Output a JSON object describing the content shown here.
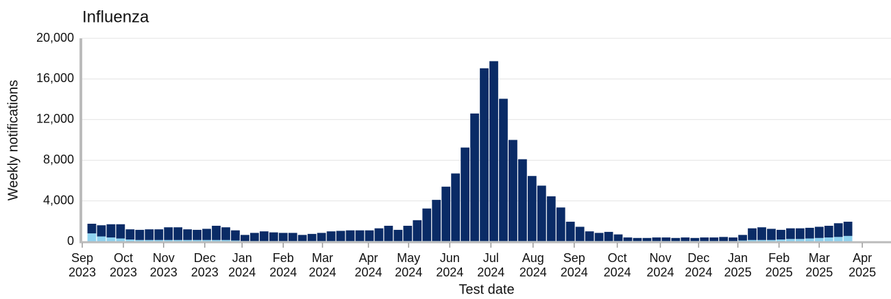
{
  "chart_data": {
    "type": "stacked-bar",
    "title": "Influenza",
    "ylabel": "Weekly notifications",
    "xlabel": "Test date",
    "categories": [
      null,
      null,
      null,
      null,
      null,
      null,
      null,
      null,
      null,
      null,
      null,
      null,
      null,
      null,
      null,
      null,
      null,
      null,
      null,
      null,
      null,
      null,
      null,
      null,
      null,
      null,
      null,
      null,
      null,
      null,
      null,
      null,
      null,
      null,
      null,
      null,
      null,
      null,
      null,
      null,
      null,
      null,
      null,
      null,
      null,
      null,
      null,
      null,
      null,
      null,
      null,
      null,
      null,
      null,
      null,
      null,
      null,
      null,
      null,
      null,
      null,
      null,
      null,
      null,
      null,
      null,
      null,
      null,
      null,
      null,
      null,
      null,
      null,
      null,
      null,
      null,
      null,
      null,
      null,
      null
    ],
    "series": [
      {
        "color": "#8fd3f0",
        "values": [
          800,
          500,
          400,
          300,
          200,
          150,
          150,
          150,
          150,
          150,
          150,
          150,
          150,
          150,
          150,
          100,
          50,
          50,
          50,
          50,
          50,
          50,
          50,
          50,
          50,
          50,
          50,
          50,
          50,
          50,
          50,
          50,
          50,
          50,
          50,
          50,
          50,
          50,
          50,
          50,
          50,
          50,
          50,
          50,
          50,
          50,
          50,
          50,
          50,
          50,
          50,
          50,
          50,
          50,
          50,
          50,
          50,
          50,
          50,
          50,
          50,
          50,
          50,
          50,
          50,
          50,
          50,
          50,
          100,
          150,
          150,
          150,
          200,
          250,
          250,
          300,
          350,
          400,
          450,
          550
        ]
      },
      {
        "color": "#0a2b66",
        "values": [
          950,
          1100,
          1300,
          1400,
          1000,
          1000,
          1050,
          1050,
          1250,
          1250,
          1050,
          1000,
          1100,
          1400,
          1250,
          1000,
          600,
          800,
          950,
          850,
          800,
          800,
          600,
          700,
          800,
          950,
          1000,
          1050,
          1050,
          1050,
          1250,
          1500,
          1100,
          1500,
          2050,
          3200,
          4050,
          5350,
          6650,
          9200,
          12550,
          17000,
          17700,
          14000,
          9950,
          8050,
          6400,
          5450,
          4400,
          3300,
          1900,
          1400,
          950,
          800,
          900,
          650,
          350,
          300,
          300,
          350,
          350,
          300,
          350,
          300,
          350,
          350,
          400,
          350,
          550,
          1150,
          1250,
          1100,
          950,
          1050,
          1050,
          1050,
          1100,
          1150,
          1350,
          1400
        ]
      }
    ],
    "xlim": [
      -0.5,
      84
    ],
    "xticks": [
      {
        "value": -0.5,
        "label": "Sep 2023"
      },
      {
        "value": 3.8,
        "label": "Oct 2023"
      },
      {
        "value": 8.0,
        "label": "Nov 2023"
      },
      {
        "value": 12.3,
        "label": "Dec 2023"
      },
      {
        "value": 16.2,
        "label": "Jan 2024"
      },
      {
        "value": 20.5,
        "label": "Feb 2024"
      },
      {
        "value": 24.6,
        "label": "Mar 2024"
      },
      {
        "value": 29.4,
        "label": "Apr 2024"
      },
      {
        "value": 33.6,
        "label": "May 2024"
      },
      {
        "value": 37.9,
        "label": "Jun 2024"
      },
      {
        "value": 42.2,
        "label": "Jul 2024"
      },
      {
        "value": 46.6,
        "label": "Aug 2024"
      },
      {
        "value": 50.9,
        "label": "Sep 2024"
      },
      {
        "value": 55.4,
        "label": "Oct 2024"
      },
      {
        "value": 59.9,
        "label": "Nov 2024"
      },
      {
        "value": 63.9,
        "label": "Dec 2024"
      },
      {
        "value": 68.0,
        "label": "Jan 2025"
      },
      {
        "value": 72.3,
        "label": "Feb 2025"
      },
      {
        "value": 76.5,
        "label": "Mar 2025"
      },
      {
        "value": 81.0,
        "label": "Apr 2025"
      }
    ],
    "ylim": [
      0,
      20000
    ],
    "yticks": [
      0,
      {
        "value": 4000,
        "label": "4,000"
      },
      {
        "value": 8000,
        "label": "8,000"
      },
      {
        "value": 12000,
        "label": "12,000"
      },
      {
        "value": 16000,
        "label": "16,000"
      },
      {
        "value": 20000,
        "label": "20,000"
      }
    ],
    "grid": true
  }
}
